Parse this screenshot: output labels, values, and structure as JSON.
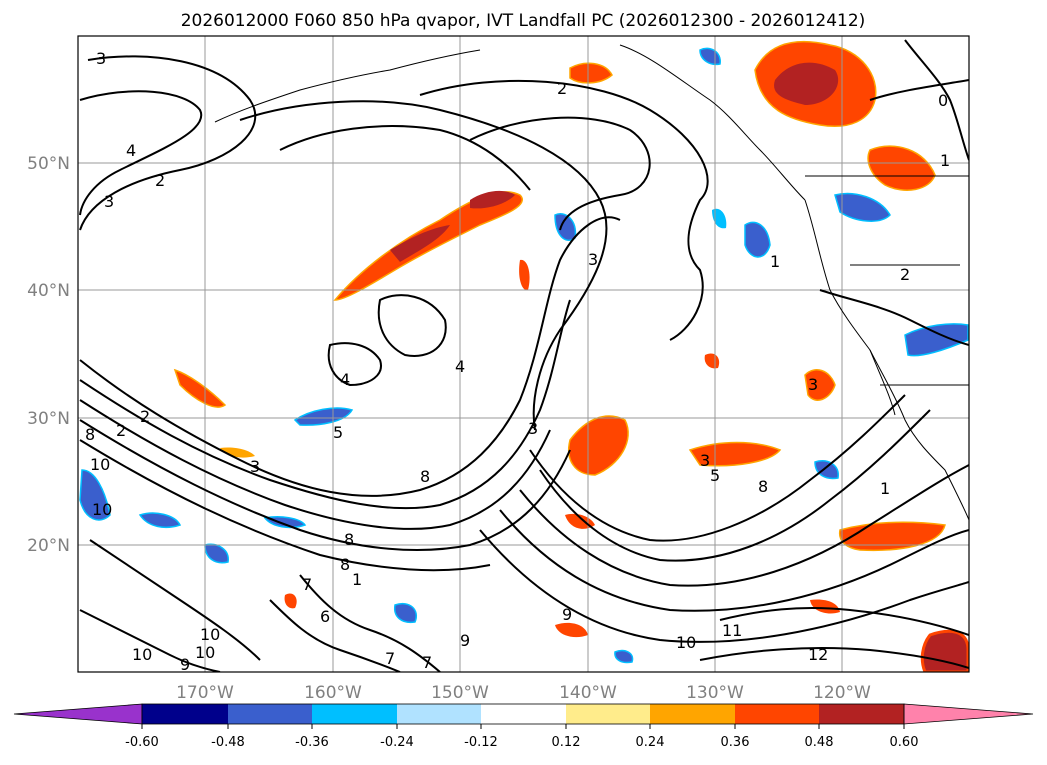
{
  "title": "2026012000 F060 850 hPa qvapor, IVT Landfall PC (2026012300 - 2026012412)",
  "map": {
    "lat_labels": [
      "50°N",
      "40°N",
      "30°N",
      "20°N"
    ],
    "lon_labels": [
      "170°W",
      "160°W",
      "150°W",
      "140°W",
      "130°W",
      "120°W"
    ],
    "gridlines": true,
    "contour_labels": [
      "3",
      "2",
      "4",
      "2",
      "3",
      "2",
      "1",
      "0",
      "1",
      "3",
      "1",
      "2",
      "4",
      "4",
      "3",
      "2",
      "3",
      "3",
      "8",
      "8",
      "10",
      "5",
      "8",
      "6",
      "7",
      "8",
      "9",
      "9",
      "10",
      "10",
      "10",
      "9",
      "10",
      "3",
      "5",
      "8",
      "1",
      "10",
      "11",
      "12",
      "7",
      "7"
    ]
  },
  "colorbar": {
    "ticks": [
      "-0.60",
      "-0.48",
      "-0.36",
      "-0.24",
      "-0.12",
      "0.12",
      "0.24",
      "0.36",
      "0.48",
      "0.60"
    ],
    "colors": [
      "#9932cc",
      "#00008b",
      "#3a5fcd",
      "#00bfff",
      "#b0e2ff",
      "#ffffff",
      "#ffec8b",
      "#ffa500",
      "#ff4500",
      "#b22222",
      "#ff82ab"
    ],
    "extend": "both"
  }
}
